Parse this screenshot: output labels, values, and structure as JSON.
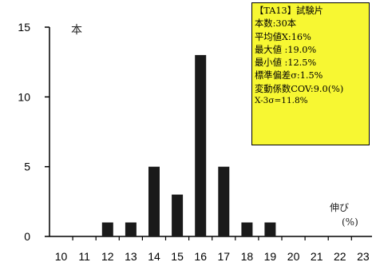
{
  "chart_data": {
    "type": "bar",
    "categories": [
      "10",
      "11",
      "12",
      "13",
      "14",
      "15",
      "16",
      "17",
      "18",
      "19",
      "20",
      "21",
      "22",
      "23"
    ],
    "values": [
      0,
      0,
      1,
      1,
      5,
      3,
      13,
      5,
      1,
      1,
      0,
      0,
      0,
      0
    ],
    "ylim": [
      0,
      15
    ],
    "yticks": [
      "0",
      "5",
      "10",
      "15"
    ],
    "ylabel": "本",
    "xlabel_line1": "伸び",
    "xlabel_line2": "(%)",
    "bar_color": "#1a1a1a",
    "legend_bg": "#f7f732"
  },
  "stats_box": {
    "lines": [
      "【TA13】試験片",
      "本数:30本",
      "平均値X:16%",
      "最大値 :19.0%",
      "最小値 :12.5%",
      "標準偏差σ:1.5%",
      "変動係数COV:9.0(%)",
      "X-3σ=11.8%"
    ]
  }
}
